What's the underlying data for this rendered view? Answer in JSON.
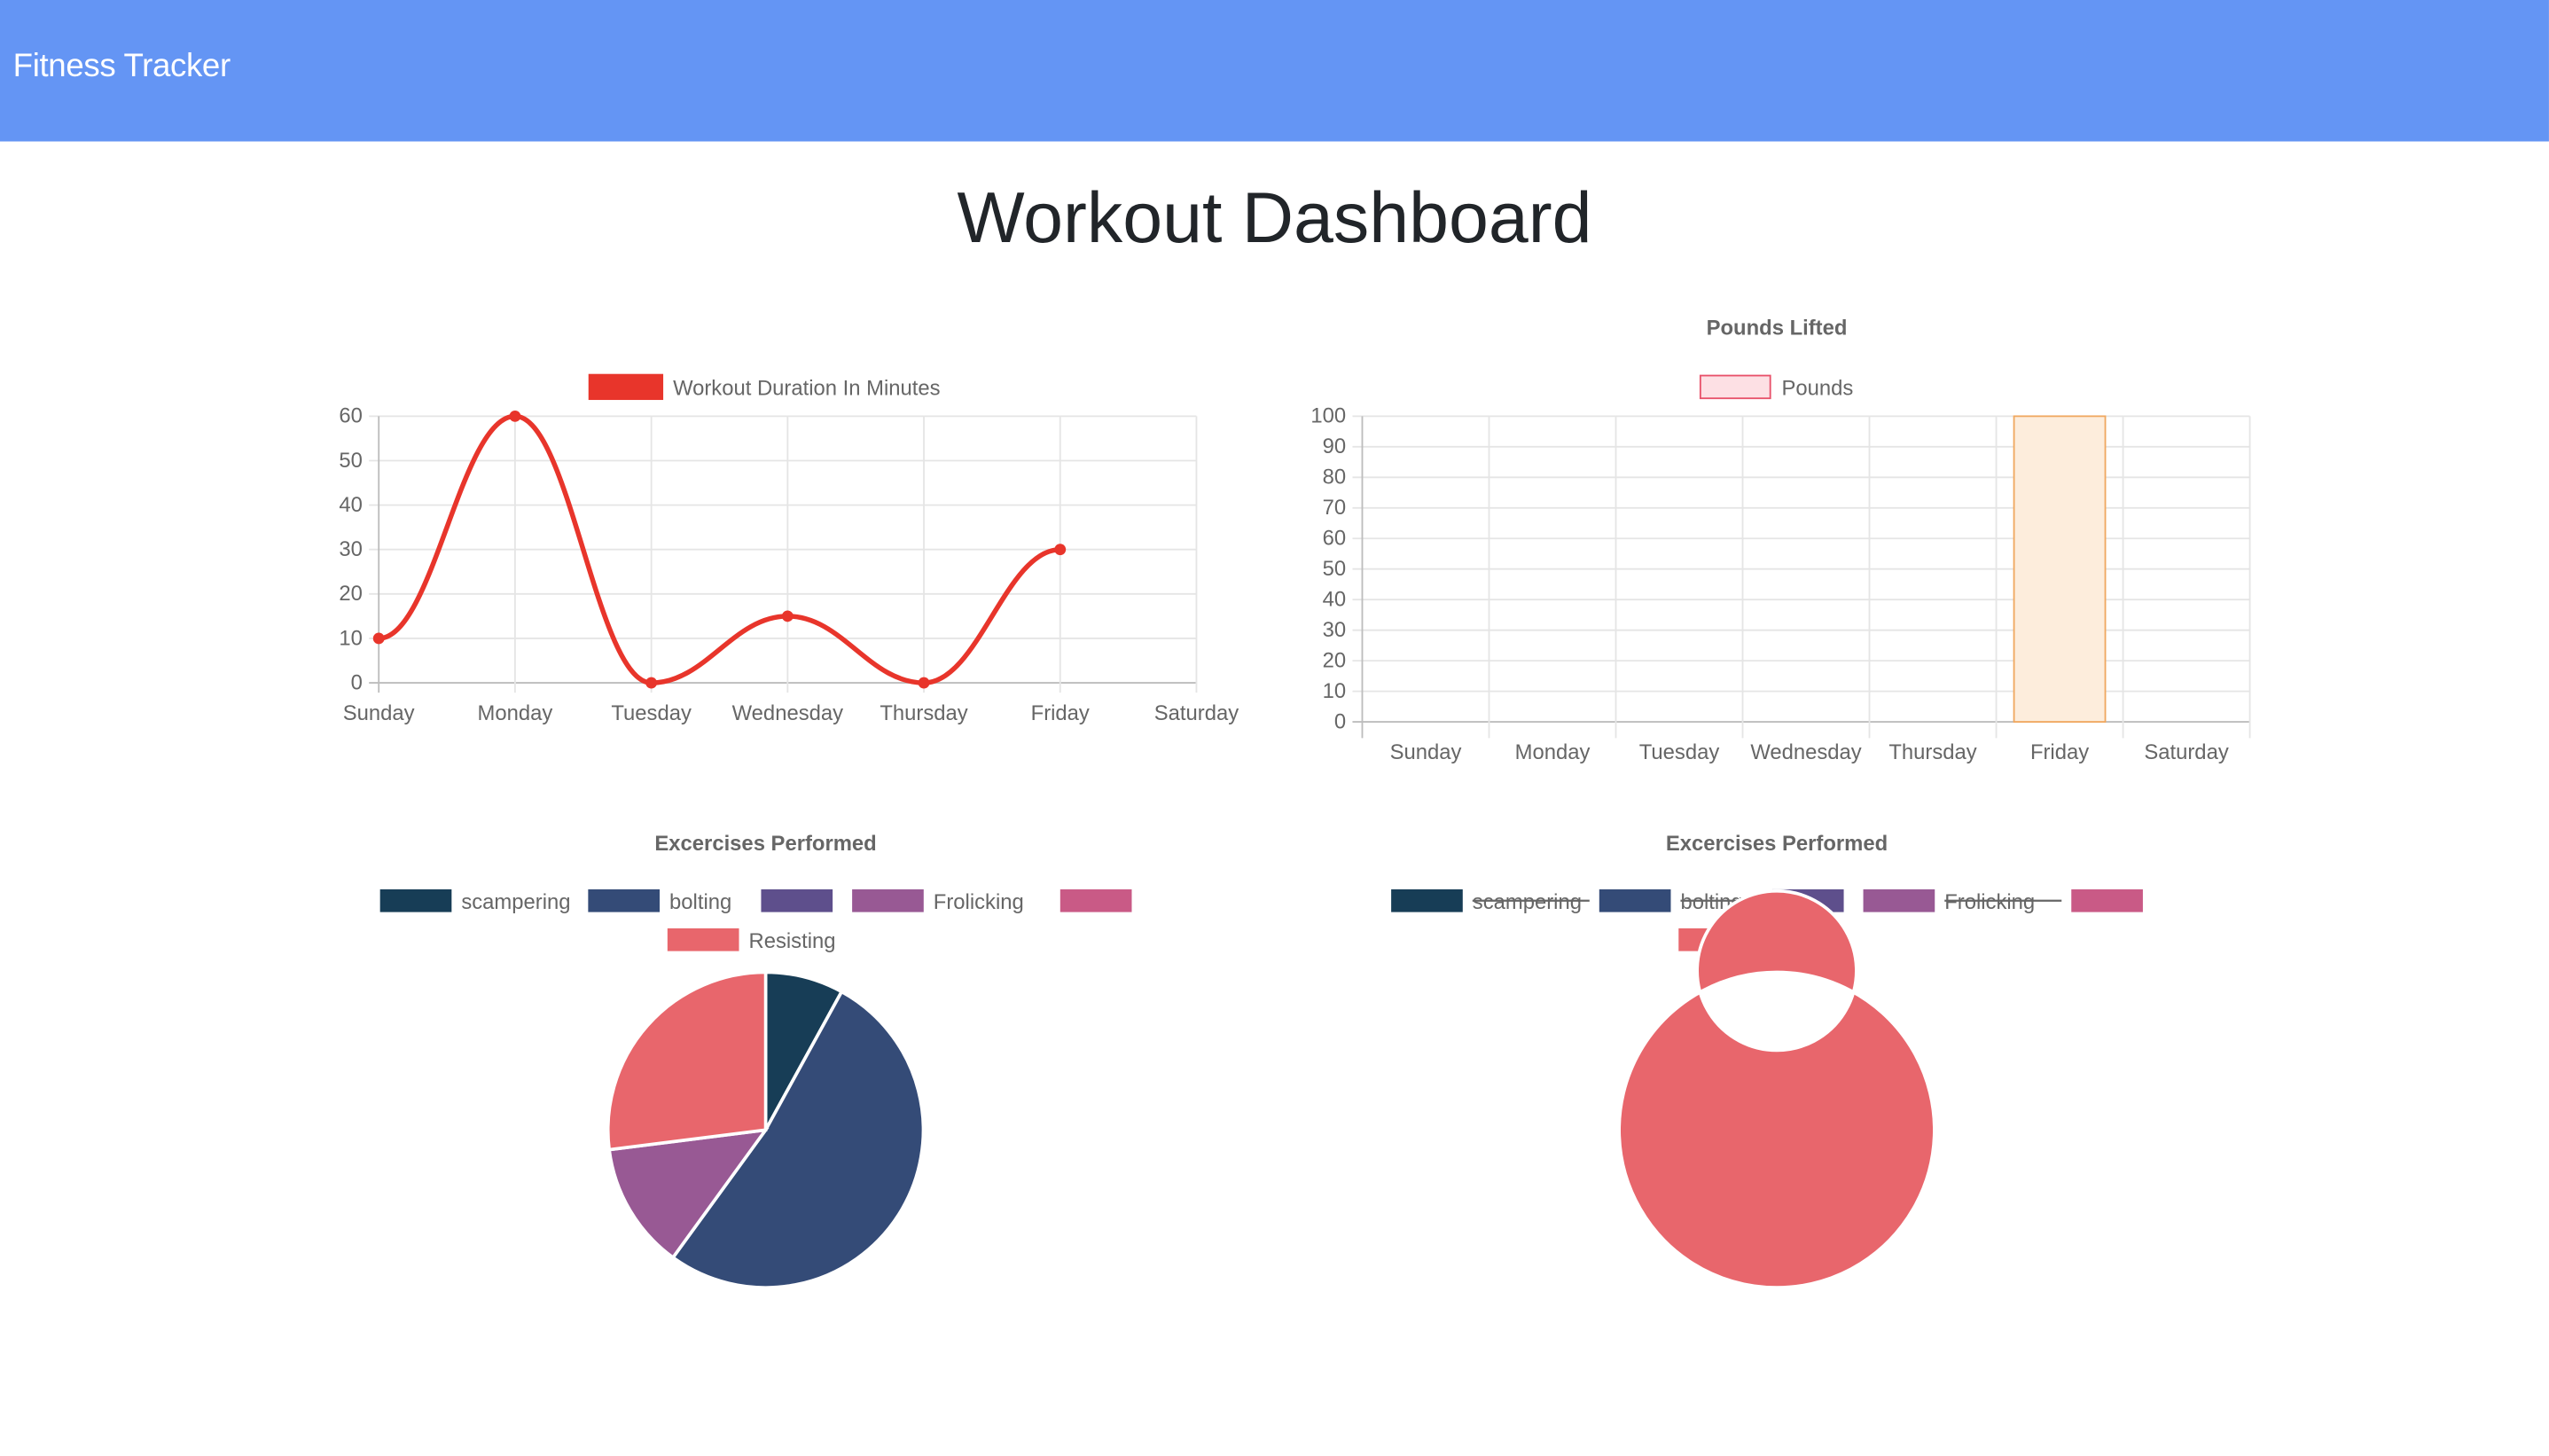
{
  "navbar": {
    "brand": "Fitness Tracker"
  },
  "page": {
    "title": "Workout Dashboard"
  },
  "chart_data": [
    {
      "id": "duration",
      "type": "line",
      "title": "",
      "legend": [
        {
          "label": "Workout Duration In Minutes",
          "color": "#e8352b"
        }
      ],
      "categories": [
        "Sunday",
        "Monday",
        "Tuesday",
        "Wednesday",
        "Thursday",
        "Friday",
        "Saturday"
      ],
      "series": [
        {
          "name": "Workout Duration In Minutes",
          "values": [
            10,
            60,
            0,
            15,
            0,
            30,
            null
          ],
          "color": "#e8352b"
        }
      ],
      "yticks": [
        "60",
        "50",
        "40",
        "30",
        "20",
        "10",
        "0"
      ],
      "ylim": [
        0,
        60
      ],
      "grid": true,
      "legend_position": "top"
    },
    {
      "id": "pounds",
      "type": "bar",
      "title": "Pounds Lifted",
      "legend": [
        {
          "label": "Pounds",
          "color": "#fde0e4",
          "border": "#e8516a"
        }
      ],
      "categories": [
        "Sunday",
        "Monday",
        "Tuesday",
        "Wednesday",
        "Thursday",
        "Friday",
        "Saturday"
      ],
      "series": [
        {
          "name": "Pounds",
          "values": [
            0,
            0,
            0,
            0,
            0,
            100,
            0
          ],
          "fill": "#fdeddc",
          "border": "#f0a860"
        }
      ],
      "yticks": [
        "100",
        "90",
        "80",
        "70",
        "60",
        "50",
        "40",
        "30",
        "20",
        "10",
        "0"
      ],
      "ylim": [
        0,
        100
      ],
      "grid": true,
      "legend_position": "top"
    },
    {
      "id": "exercises-pie",
      "type": "pie",
      "title": "Excercises Performed",
      "legend": [
        {
          "label": "scampering",
          "color": "#173d56",
          "hidden": false
        },
        {
          "label": "bolting",
          "color": "#344b77",
          "hidden": false
        },
        {
          "label": "",
          "color": "#5e4f8c",
          "hidden": false
        },
        {
          "label": "Frolicking",
          "color": "#985994",
          "hidden": false
        },
        {
          "label": "",
          "color": "#c95a86",
          "hidden": false
        },
        {
          "label": "Resisting",
          "color": "#e8666c",
          "hidden": false
        }
      ],
      "slices": [
        {
          "label": "scampering",
          "value": 8,
          "color": "#173d56"
        },
        {
          "label": "bolting",
          "value": 52,
          "color": "#344b77"
        },
        {
          "label": "Frolicking",
          "value": 13,
          "color": "#985994"
        },
        {
          "label": "Resisting",
          "value": 27,
          "color": "#e8666c"
        }
      ]
    },
    {
      "id": "exercises-doughnut",
      "type": "doughnut",
      "title": "Excercises Performed",
      "legend": [
        {
          "label": "scampering",
          "color": "#173d56",
          "hidden": true
        },
        {
          "label": "bolting",
          "color": "#344b77",
          "hidden": true
        },
        {
          "label": "",
          "color": "#5e4f8c",
          "hidden": false
        },
        {
          "label": "Frolicking",
          "color": "#985994",
          "hidden": true
        },
        {
          "label": "",
          "color": "#c95a86",
          "hidden": false
        },
        {
          "label": "Resisting",
          "color": "#e8666c",
          "hidden": false
        }
      ],
      "slices": [
        {
          "label": "Resisting",
          "value": 100,
          "color": "#e8666c"
        }
      ]
    }
  ]
}
